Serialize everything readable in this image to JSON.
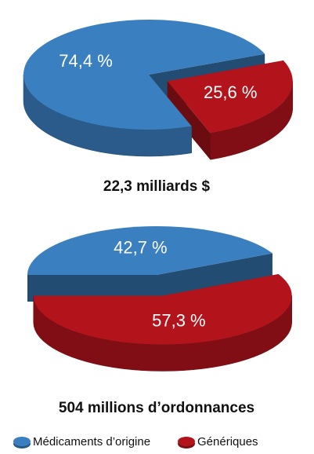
{
  "chart_data": [
    {
      "type": "pie",
      "title": "22,3 milliards $",
      "categories": [
        "Médicaments d’origine",
        "Génériques"
      ],
      "values": [
        74.4,
        25.6
      ],
      "value_labels": [
        "74,4 %",
        "25,6 %"
      ],
      "colors": [
        "#3a7fc0",
        "#b3141c"
      ]
    },
    {
      "type": "pie",
      "title": "504 millions d’ordonnances",
      "categories": [
        "Médicaments d’origine",
        "Génériques"
      ],
      "values": [
        42.7,
        57.3
      ],
      "value_labels": [
        "42,7 %",
        "57,3 %"
      ],
      "colors": [
        "#3a7fc0",
        "#b3141c"
      ]
    }
  ]
}
